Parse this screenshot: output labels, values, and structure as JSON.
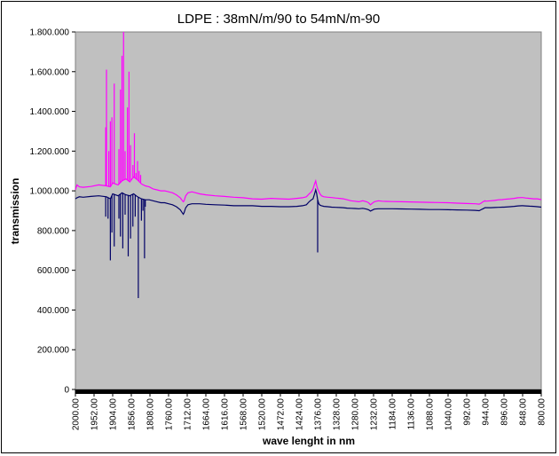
{
  "chart_data": {
    "type": "line",
    "title": "LDPE : 38mN/m/90 to 54mN/m-90",
    "xlabel": "wave lenght in nm",
    "ylabel": "transmission",
    "x_reversed": true,
    "xlim": [
      2000,
      800
    ],
    "ylim": [
      0,
      1800
    ],
    "y_ticks": [
      0,
      200,
      400,
      600,
      800,
      1000,
      1200,
      1400,
      1600,
      1800
    ],
    "y_tick_labels": [
      "0",
      "200.000",
      "400.000",
      "600.000",
      "800.000",
      "1.000.000",
      "1.200.000",
      "1.400.000",
      "1.600.000",
      "1.800.000"
    ],
    "x_ticks": [
      2000,
      1952,
      1904,
      1856,
      1808,
      1760,
      1712,
      1664,
      1616,
      1568,
      1520,
      1472,
      1424,
      1376,
      1328,
      1280,
      1232,
      1184,
      1136,
      1088,
      1040,
      992,
      944,
      896,
      848,
      800
    ],
    "x_tick_labels": [
      "2000.00",
      "1952.00",
      "1904.00",
      "1856.00",
      "1808.00",
      "1760.00",
      "1712.00",
      "1664.00",
      "1616.00",
      "1568.00",
      "1520.00",
      "1472.00",
      "1424.00",
      "1376.00",
      "1328.00",
      "1280.00",
      "1232.00",
      "1184.00",
      "1136.00",
      "1088.00",
      "1040.00",
      "992.00",
      "944.00",
      "896.00",
      "848.00",
      "800.00"
    ],
    "grid": false,
    "legend": "none",
    "plot_background": "#c0c0c0",
    "series": [
      {
        "color": "#ff00ff",
        "x": [
          2000,
          1996,
          1990,
          1980,
          1960,
          1940,
          1920,
          1910,
          1904,
          1890,
          1880,
          1870,
          1860,
          1850,
          1840,
          1830,
          1820,
          1810,
          1800,
          1790,
          1780,
          1770,
          1760,
          1750,
          1740,
          1730,
          1725,
          1722,
          1720,
          1716,
          1710,
          1700,
          1690,
          1680,
          1664,
          1640,
          1616,
          1592,
          1568,
          1544,
          1520,
          1496,
          1472,
          1450,
          1430,
          1415,
          1405,
          1398,
          1392,
          1388,
          1384,
          1381,
          1379,
          1376,
          1373,
          1370,
          1366,
          1360,
          1350,
          1340,
          1330,
          1320,
          1310,
          1300,
          1290,
          1280,
          1270,
          1260,
          1250,
          1245,
          1240,
          1235,
          1230,
          1220,
          1210,
          1200,
          1184,
          1160,
          1136,
          1112,
          1088,
          1064,
          1040,
          1016,
          992,
          970,
          960,
          955,
          950,
          945,
          944,
          930,
          920,
          910,
          900,
          896,
          880,
          870,
          860,
          850,
          848,
          840,
          830,
          820,
          810,
          800
        ],
        "y": [
          1005,
          1030,
          1020,
          1018,
          1022,
          1030,
          1025,
          1020,
          1040,
          1030,
          1050,
          1060,
          1045,
          1070,
          1055,
          1035,
          1025,
          1020,
          1010,
          1005,
          1000,
          1000,
          995,
          990,
          980,
          965,
          952,
          945,
          950,
          975,
          990,
          995,
          990,
          985,
          980,
          975,
          972,
          968,
          965,
          960,
          958,
          962,
          960,
          958,
          962,
          965,
          970,
          985,
          995,
          1010,
          1035,
          1050,
          1030,
          1010,
          998,
          985,
          975,
          970,
          968,
          966,
          964,
          962,
          960,
          955,
          950,
          948,
          945,
          950,
          945,
          940,
          930,
          938,
          945,
          950,
          948,
          947,
          946,
          945,
          944,
          943,
          942,
          941,
          940,
          938,
          936,
          935,
          933,
          938,
          945,
          950,
          948,
          950,
          952,
          955,
          956,
          957,
          960,
          962,
          965,
          966,
          966,
          964,
          962,
          960,
          960,
          956
        ]
      },
      {
        "color": "#000066",
        "x": [
          2000,
          1996,
          1990,
          1980,
          1960,
          1940,
          1920,
          1910,
          1904,
          1890,
          1880,
          1870,
          1860,
          1850,
          1840,
          1830,
          1820,
          1810,
          1800,
          1790,
          1780,
          1770,
          1760,
          1750,
          1740,
          1730,
          1725,
          1722,
          1720,
          1716,
          1710,
          1700,
          1690,
          1680,
          1664,
          1640,
          1616,
          1592,
          1568,
          1544,
          1520,
          1496,
          1472,
          1450,
          1430,
          1415,
          1405,
          1398,
          1392,
          1388,
          1384,
          1381,
          1379,
          1376,
          1373,
          1370,
          1366,
          1360,
          1350,
          1340,
          1330,
          1320,
          1310,
          1300,
          1290,
          1280,
          1270,
          1260,
          1250,
          1245,
          1240,
          1235,
          1230,
          1220,
          1210,
          1200,
          1184,
          1160,
          1136,
          1112,
          1088,
          1064,
          1040,
          1016,
          992,
          970,
          960,
          955,
          950,
          945,
          944,
          930,
          920,
          910,
          900,
          896,
          880,
          870,
          860,
          850,
          848,
          840,
          830,
          820,
          810,
          800
        ],
        "y": [
          960,
          965,
          970,
          968,
          972,
          975,
          970,
          960,
          985,
          975,
          990,
          980,
          975,
          985,
          970,
          960,
          955,
          955,
          950,
          945,
          940,
          940,
          935,
          930,
          920,
          905,
          890,
          882,
          890,
          915,
          930,
          935,
          935,
          935,
          932,
          930,
          928,
          925,
          925,
          925,
          922,
          922,
          920,
          920,
          922,
          925,
          930,
          945,
          955,
          960,
          985,
          1005,
          990,
          955,
          935,
          928,
          925,
          922,
          920,
          918,
          917,
          916,
          915,
          913,
          912,
          911,
          910,
          912,
          908,
          905,
          898,
          903,
          908,
          910,
          910,
          910,
          910,
          909,
          908,
          907,
          906,
          906,
          905,
          904,
          903,
          902,
          900,
          905,
          910,
          915,
          915,
          915,
          916,
          917,
          918,
          918,
          920,
          922,
          924,
          925,
          925,
          924,
          923,
          922,
          920,
          918
        ]
      }
    ],
    "spikes": [
      {
        "color": "#ff00ff",
        "x": [
          1922,
          1920,
          1914,
          1910,
          1906,
          1900,
          1888,
          1884,
          1880,
          1876,
          1872,
          1866,
          1862,
          1858,
          1852,
          1848,
          1844,
          1840,
          1836,
          1832
        ],
        "y": [
          1320,
          1610,
          1200,
          1350,
          1370,
          1540,
          1210,
          1510,
          1680,
          1800,
          1200,
          1420,
          1600,
          1230,
          1130,
          1290,
          1090,
          1150,
          1100,
          1080
        ]
      },
      {
        "color": "#000066",
        "x": [
          1922,
          1916,
          1910,
          1906,
          1900,
          1888,
          1884,
          1878,
          1872,
          1864,
          1858,
          1852,
          1846,
          1838,
          1830,
          1826,
          1822,
          1820,
          1376
        ],
        "y": [
          870,
          860,
          650,
          790,
          720,
          860,
          770,
          710,
          880,
          670,
          760,
          820,
          870,
          460,
          850,
          900,
          660,
          920,
          690
        ]
      }
    ]
  }
}
